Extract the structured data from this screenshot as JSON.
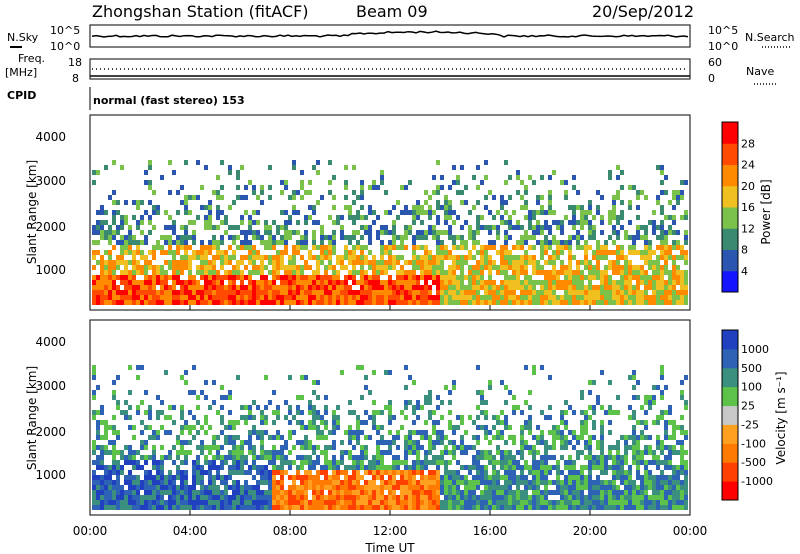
{
  "header": {
    "title": "Zhongshan Station (fitACF)",
    "beam": "Beam 09",
    "date": "20/Sep/2012"
  },
  "top_panels": {
    "nsky_label": "N.Sky",
    "nsky_top": "10^5",
    "nsky_bottom": "10^0",
    "nsearch_label": "N.Search",
    "nsearch_top": "10^5",
    "nsearch_bottom": "10^0",
    "freq_label_1": "Freq.",
    "freq_label_2": "[MHz]",
    "freq_top": "18",
    "freq_bottom": "8",
    "nave_label": "Nave",
    "nave_top": "60",
    "nave_bottom": "0",
    "cpid_label": "CPID",
    "cpid_text": "normal (fast stereo) 153"
  },
  "chart_data": [
    {
      "type": "heatmap",
      "name": "power",
      "ylabel": "Slant Range [km]",
      "y_ticks": [
        "1000",
        "2000",
        "3000",
        "4000"
      ],
      "ylim": [
        200,
        4600
      ],
      "colorbar_label": "Power [dB]",
      "colorbar_ticks": [
        "4",
        "8",
        "12",
        "16",
        "20",
        "24",
        "28"
      ],
      "colorbar_colors": [
        "#1414ff",
        "#2a56b0",
        "#3a8a72",
        "#7ac24a",
        "#f0c020",
        "#ff8a00",
        "#ff4a00",
        "#ff0000"
      ]
    },
    {
      "type": "heatmap",
      "name": "velocity",
      "ylabel": "Slant Range [km]",
      "y_ticks": [
        "1000",
        "2000",
        "3000",
        "4000"
      ],
      "ylim": [
        200,
        4600
      ],
      "colorbar_label": "Velocity [m s⁻¹]",
      "colorbar_ticks": [
        "1000",
        "500",
        "100",
        "25",
        "-25",
        "-100",
        "-500",
        "-1000"
      ],
      "colorbar_colors": [
        "#2040c0",
        "#2e62b4",
        "#3b8f7e",
        "#5cc24a",
        "#c8c8c8",
        "#ffa020",
        "#ff7a00",
        "#ff4000",
        "#ff0000"
      ]
    }
  ],
  "x_axis": {
    "ticks": [
      "00:00",
      "04:00",
      "08:00",
      "12:00",
      "16:00",
      "20:00",
      "00:00"
    ],
    "label": "Time UT"
  }
}
